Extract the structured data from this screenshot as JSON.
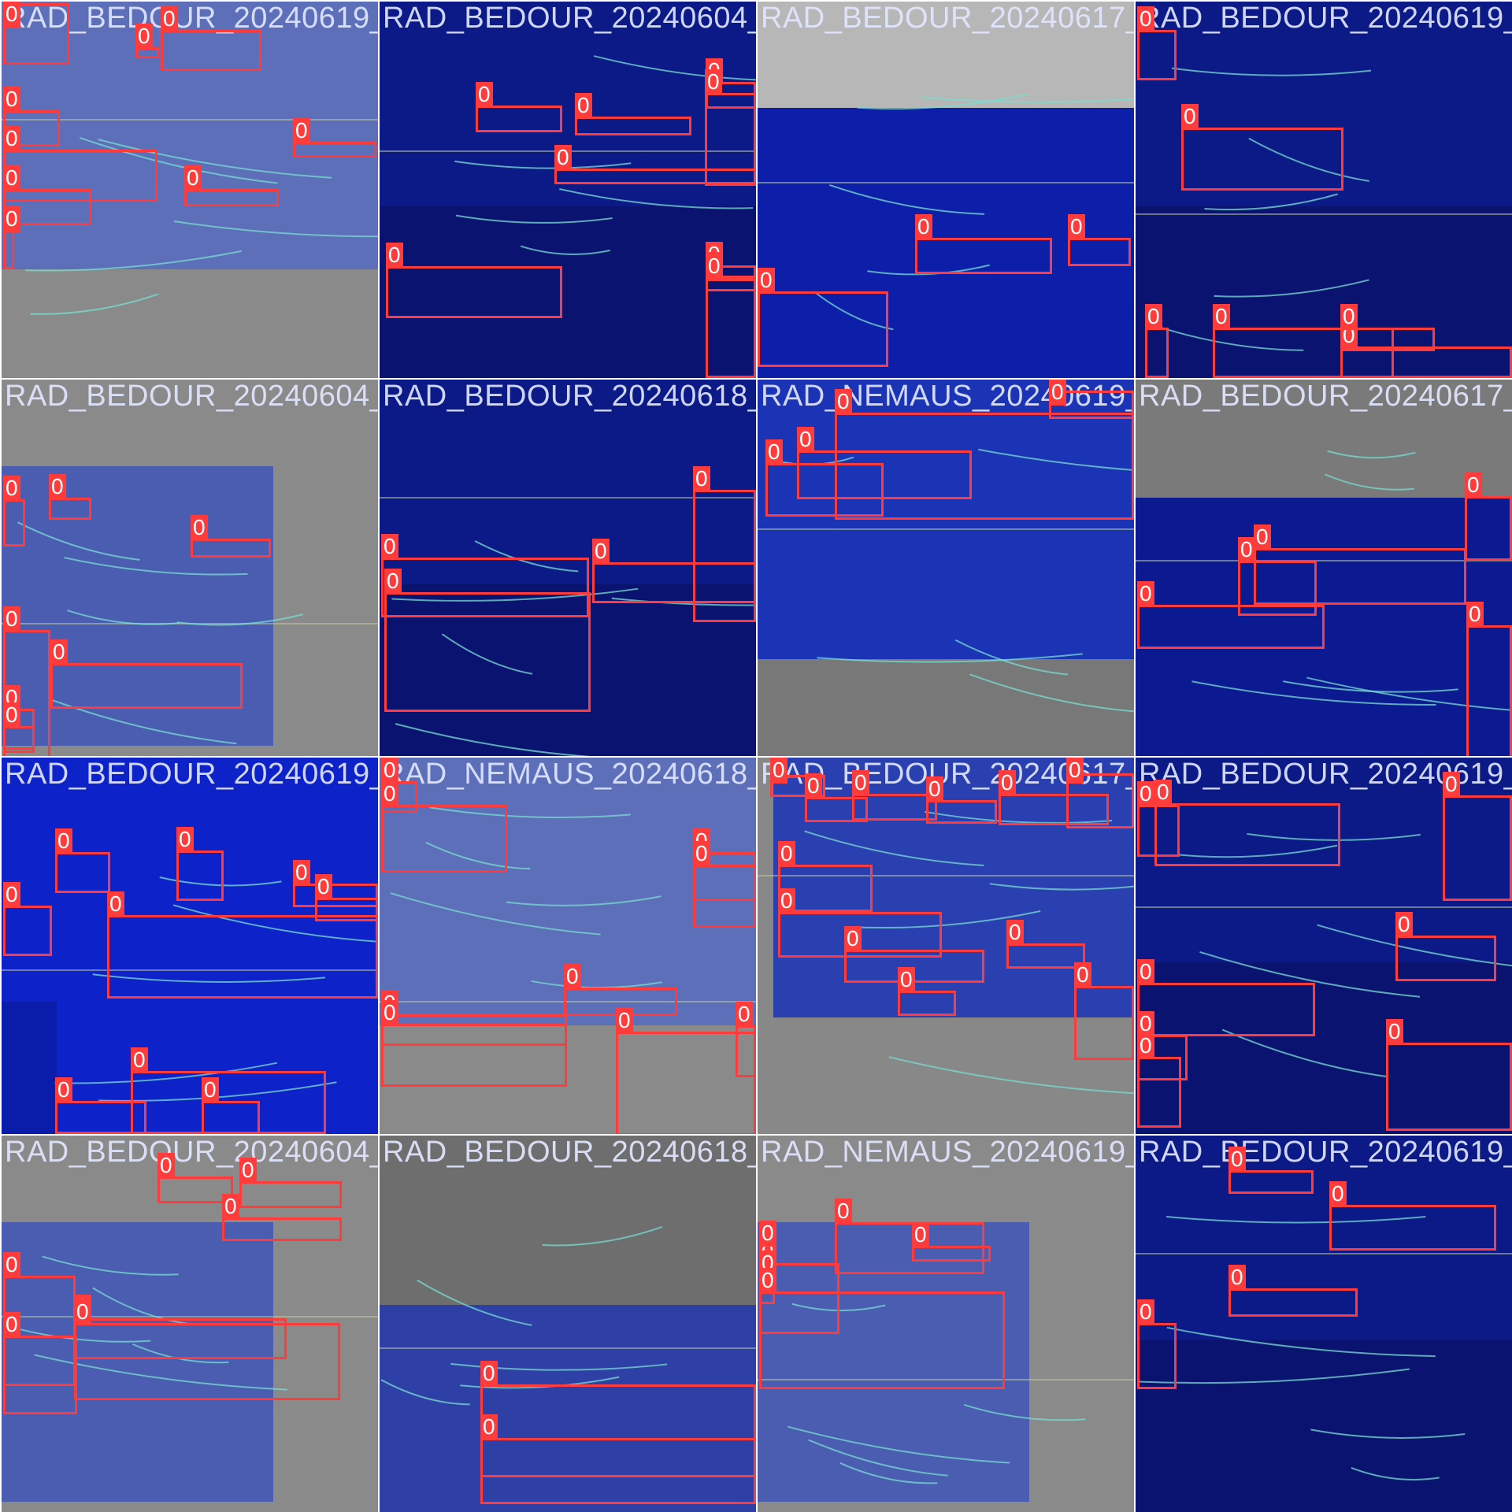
{
  "mosaic": {
    "class_label": "0",
    "box_color": "#ff3b3b",
    "tiles": [
      {
        "name": "RAD_BEDOUR_20240619_",
        "theme": "pale"
      },
      {
        "name": "RAD_BEDOUR_20240604_",
        "theme": "navy"
      },
      {
        "name": "RAD_BEDOUR_20240617_",
        "theme": "gray-top"
      },
      {
        "name": "RAD_BEDOUR_20240619_",
        "theme": "navy"
      },
      {
        "name": "RAD_BEDOUR_20240604_",
        "theme": "pale-gray"
      },
      {
        "name": "RAD_BEDOUR_20240618_",
        "theme": "navy"
      },
      {
        "name": "RAD_NEMAUS_20240619_",
        "theme": "blue"
      },
      {
        "name": "RAD_BEDOUR_20240617_",
        "theme": "navy-gray"
      },
      {
        "name": "RAD_BEDOUR_20240619_",
        "theme": "bright"
      },
      {
        "name": "RAD_NEMAUS_20240618_",
        "theme": "pale"
      },
      {
        "name": "RAD_BEDOUR_20240617_",
        "theme": "blue-gray"
      },
      {
        "name": "RAD_BEDOUR_20240619_",
        "theme": "navy"
      },
      {
        "name": "RAD_BEDOUR_20240604_",
        "theme": "pale-gray"
      },
      {
        "name": "RAD_BEDOUR_20240618_",
        "theme": "gray-bottom"
      },
      {
        "name": "RAD_NEMAUS_20240619_",
        "theme": "pale-gray"
      },
      {
        "name": "RAD_BEDOUR_20240619_",
        "theme": "navy"
      }
    ]
  }
}
